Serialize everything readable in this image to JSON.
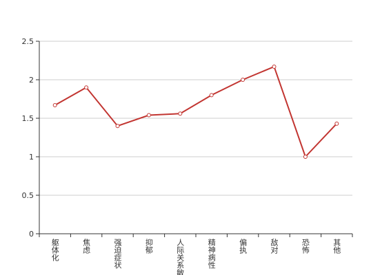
{
  "chart_data": {
    "type": "line",
    "categories": [
      "躯体化",
      "焦虑",
      "强迫症状",
      "抑郁",
      "人际关系敏感",
      "精神病性",
      "偏执",
      "敌对",
      "恐怖",
      "其他"
    ],
    "values": [
      1.67,
      1.9,
      1.4,
      1.54,
      1.56,
      1.8,
      2.0,
      2.17,
      1.0,
      1.43
    ],
    "color": "#c23531",
    "ylim": [
      0,
      2.5
    ],
    "yticks": [
      0,
      0.5,
      1,
      1.5,
      2,
      2.5
    ],
    "grid": true
  }
}
